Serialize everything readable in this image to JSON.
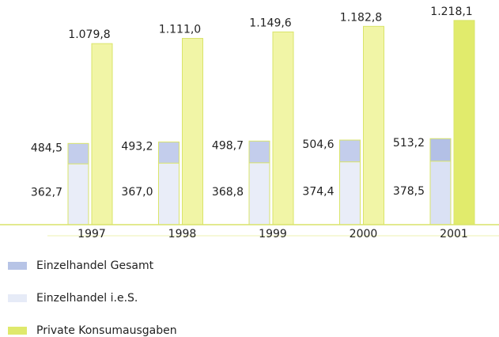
{
  "chart_data": {
    "type": "bar",
    "categories": [
      "1997",
      "1998",
      "1999",
      "2000",
      "2001"
    ],
    "series": [
      {
        "name": "Einzelhandel Gesamt",
        "color": "#b7c4e6",
        "colors": [
          "#c3cdec",
          "#c3cdec",
          "#c3cdec",
          "#c3cdec",
          "#b3c0e6"
        ],
        "values": [
          484.5,
          493.2,
          498.7,
          504.6,
          513.2
        ],
        "value_labels": [
          "484,5",
          "493,2",
          "498,7",
          "504,6",
          "513,2"
        ]
      },
      {
        "name": "Einzelhandel i.e.S.",
        "color": "#e6ebf7",
        "colors": [
          "#e9edf8",
          "#e9edf8",
          "#e9edf8",
          "#e9edf8",
          "#dae1f4"
        ],
        "values": [
          362.7,
          367.0,
          368.8,
          374.4,
          378.5
        ],
        "value_labels": [
          "362,7",
          "367,0",
          "368,8",
          "374,4",
          "378,5"
        ]
      },
      {
        "name": "Private Konsumausgaben",
        "color": "#dfe96c",
        "colors": [
          "#f1f5a6",
          "#f1f5a6",
          "#f1f5a6",
          "#f1f5a6",
          "#e1eb6c"
        ],
        "values": [
          1079.8,
          1111.0,
          1149.6,
          1182.8,
          1218.1
        ],
        "value_labels": [
          "1.079,8",
          "1.111,0",
          "1.149,6",
          "1.182,8",
          "1.218,1"
        ]
      }
    ],
    "ylim": [
      0,
      1340
    ]
  }
}
